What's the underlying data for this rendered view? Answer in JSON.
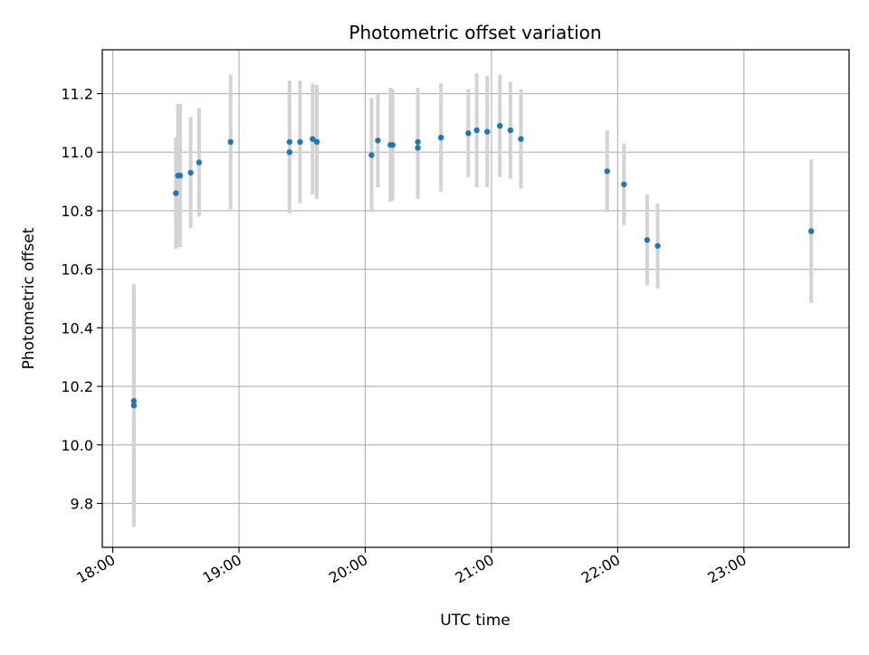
{
  "chart_data": {
    "type": "scatter",
    "title": "Photometric offset variation",
    "xlabel": "UTC time",
    "ylabel": "Photometric offset",
    "x_ticks": [
      "18:00",
      "19:00",
      "20:00",
      "21:00",
      "22:00",
      "23:00"
    ],
    "y_ticks": [
      "9.8",
      "10.0",
      "10.2",
      "10.4",
      "10.6",
      "10.8",
      "11.0",
      "11.2"
    ],
    "xlim": [
      "17:55",
      "23:50"
    ],
    "ylim": [
      9.65,
      11.35
    ],
    "grid": true,
    "point_color": "#1f77b4",
    "errorbar_color": "#d3d3d3",
    "series": [
      {
        "points": [
          {
            "x": "18:10",
            "y": 10.135,
            "err": 0.415
          },
          {
            "x": "18:10",
            "y": 10.15,
            "err": 0.385
          },
          {
            "x": "18:30",
            "y": 10.86,
            "err": 0.19
          },
          {
            "x": "18:31",
            "y": 10.92,
            "err": 0.245
          },
          {
            "x": "18:32",
            "y": 10.92,
            "err": 0.245
          },
          {
            "x": "18:37",
            "y": 10.93,
            "err": 0.19
          },
          {
            "x": "18:41",
            "y": 10.965,
            "err": 0.185
          },
          {
            "x": "18:56",
            "y": 11.035,
            "err": 0.23
          },
          {
            "x": "19:24",
            "y": 11.035,
            "err": 0.21
          },
          {
            "x": "19:24",
            "y": 11.0,
            "err": 0.21
          },
          {
            "x": "19:29",
            "y": 11.035,
            "err": 0.21
          },
          {
            "x": "19:35",
            "y": 11.045,
            "err": 0.19
          },
          {
            "x": "19:37",
            "y": 11.035,
            "err": 0.195
          },
          {
            "x": "20:03",
            "y": 10.99,
            "err": 0.195
          },
          {
            "x": "20:06",
            "y": 11.04,
            "err": 0.16
          },
          {
            "x": "20:12",
            "y": 11.025,
            "err": 0.195
          },
          {
            "x": "20:13",
            "y": 11.025,
            "err": 0.19
          },
          {
            "x": "20:25",
            "y": 11.015,
            "err": 0.175
          },
          {
            "x": "20:25",
            "y": 11.035,
            "err": 0.185
          },
          {
            "x": "20:36",
            "y": 11.05,
            "err": 0.185
          },
          {
            "x": "20:49",
            "y": 11.065,
            "err": 0.15
          },
          {
            "x": "20:53",
            "y": 11.075,
            "err": 0.195
          },
          {
            "x": "20:58",
            "y": 11.07,
            "err": 0.19
          },
          {
            "x": "21:04",
            "y": 11.09,
            "err": 0.175
          },
          {
            "x": "21:09",
            "y": 11.075,
            "err": 0.165
          },
          {
            "x": "21:14",
            "y": 11.045,
            "err": 0.17
          },
          {
            "x": "21:55",
            "y": 10.935,
            "err": 0.14
          },
          {
            "x": "22:03",
            "y": 10.89,
            "err": 0.14
          },
          {
            "x": "22:14",
            "y": 10.7,
            "err": 0.155
          },
          {
            "x": "22:19",
            "y": 10.68,
            "err": 0.145
          },
          {
            "x": "23:32",
            "y": 10.73,
            "err": 0.245
          }
        ]
      }
    ]
  }
}
